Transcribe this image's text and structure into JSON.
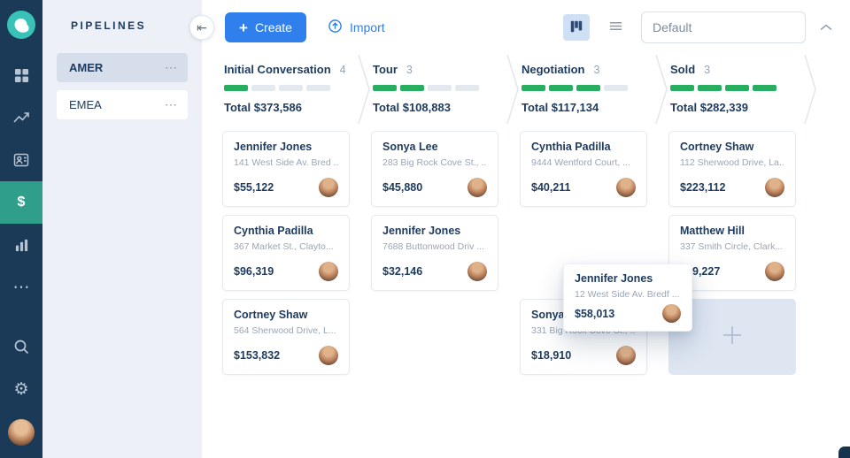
{
  "colors": {
    "sidebar_navy": "#1b3a57",
    "active_teal": "#2f9e8b",
    "accent_blue": "#2f80ed",
    "progress_green": "#27ae60",
    "selected_item_bg": "#d6deeb"
  },
  "icons": {
    "collapse_glyph": "⇤",
    "plus_glyph": "+",
    "dollar_glyph": "$",
    "ellipsis_glyph": "⋯",
    "gear_glyph": "⚙",
    "menu_dots": "⋯"
  },
  "pipelines": {
    "title": "PIPELINES",
    "items": [
      {
        "label": "AMER",
        "selected": true
      },
      {
        "label": "EMEA",
        "selected": false
      }
    ]
  },
  "topbar": {
    "create_label": "Create",
    "import_label": "Import",
    "view_value": "Default"
  },
  "stages": [
    {
      "name": "Initial Conversation",
      "count": "4",
      "segments": 4,
      "progress": 1,
      "total_label": "Total",
      "total_amount": "$373,586"
    },
    {
      "name": "Tour",
      "count": "3",
      "segments": 4,
      "progress": 2,
      "total_label": "Total",
      "total_amount": "$108,883"
    },
    {
      "name": "Negotiation",
      "count": "3",
      "segments": 4,
      "progress": 3,
      "total_label": "Total",
      "total_amount": "$117,134"
    },
    {
      "name": "Sold",
      "count": "3",
      "segments": 4,
      "progress": 4,
      "total_label": "Total",
      "total_amount": "$282,339"
    }
  ],
  "columns": [
    {
      "stage": "Initial Conversation",
      "cards": [
        {
          "name": "Jennifer Jones",
          "address": "141 West Side Av. Bred ...",
          "amount": "$55,122"
        },
        {
          "name": "Cynthia Padilla",
          "address": "367 Market St., Clayto...",
          "amount": "$96,319"
        },
        {
          "name": "Cortney Shaw",
          "address": "564 Sherwood Drive, L...",
          "amount": "$153,832"
        }
      ]
    },
    {
      "stage": "Tour",
      "cards": [
        {
          "name": "Sonya Lee",
          "address": "283 Big Rock Cove St., ...",
          "amount": "$45,880"
        },
        {
          "name": "Jennifer Jones",
          "address": "7688 Buttonwood Driv ...",
          "amount": "$32,146"
        }
      ]
    },
    {
      "stage": "Negotiation",
      "cards": [
        {
          "name": "Cynthia Padilla",
          "address": "9444 Wentford Court, ...",
          "amount": "$40,211"
        },
        {
          "type": "empty"
        },
        {
          "name": "Sonya Lee",
          "address": "331 Big Rock Cove St., ...",
          "amount": "$18,910"
        }
      ]
    },
    {
      "stage": "Sold",
      "cards": [
        {
          "name": "Cortney Shaw",
          "address": "112 Sherwood Drive, La...",
          "amount": "$223,112"
        },
        {
          "name": "Matthew Hill",
          "address": "337 Smith Circle, Clark...",
          "amount": "9,227",
          "amount_partial": true
        },
        {
          "type": "add"
        }
      ]
    }
  ],
  "drag_card": {
    "name": "Jennifer Jones",
    "address": "12 West Side Av. Bredf ...",
    "amount": "$58,013"
  }
}
